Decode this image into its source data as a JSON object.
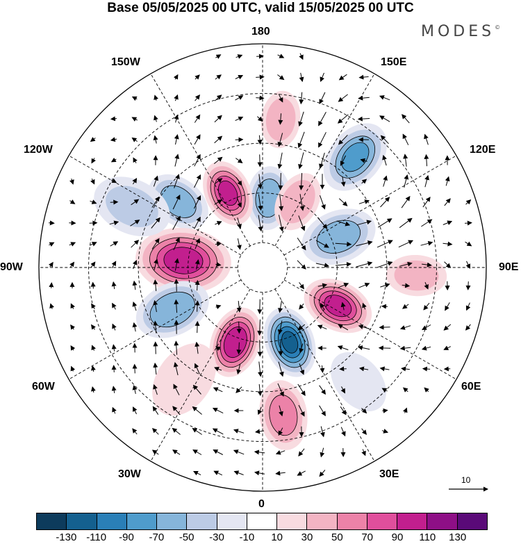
{
  "title": "Base 05/05/2025 00 UTC, valid 15/05/2025 00 UTC",
  "brand": "MODES",
  "brand_mark": "©",
  "labels": {
    "top": "180",
    "bottom": "0",
    "left": "90W",
    "right": "90E",
    "upper_left_1": "150W",
    "upper_left_2": "120W",
    "lower_left_1": "60W",
    "lower_left_2": "30W",
    "upper_right_1": "150E",
    "upper_right_2": "120E",
    "lower_right_1": "60E",
    "lower_right_2": "30E"
  },
  "reference_vector": {
    "value": "10"
  },
  "colorbar": {
    "colors": [
      "#0d3b5c",
      "#14608f",
      "#2a7fb7",
      "#4f9ccc",
      "#86b5da",
      "#bccbe5",
      "#e4e6f2",
      "#ffffff",
      "#f8dbe0",
      "#f3b4c3",
      "#ec82a8",
      "#e04f9c",
      "#c21f8e",
      "#8e0f86",
      "#5a0a78"
    ],
    "tick_labels": [
      "-130",
      "-110",
      "-90",
      "-70",
      "-50",
      "-30",
      "-10",
      "10",
      "30",
      "50",
      "70",
      "90",
      "110",
      "130"
    ]
  },
  "anomaly_centers": [
    {
      "lon": 175,
      "lat": 62,
      "value": -75,
      "size": 40
    },
    {
      "lon": -155,
      "lat": 57,
      "value": 105,
      "size": 42
    },
    {
      "lon": -128,
      "lat": 47,
      "value": -72,
      "size": 42
    },
    {
      "lon": -95,
      "lat": 58,
      "value": 110,
      "size": 60
    },
    {
      "lon": -65,
      "lat": 50,
      "value": -78,
      "size": 48
    },
    {
      "lon": -20,
      "lat": 58,
      "value": 118,
      "size": 45
    },
    {
      "lon": 20,
      "lat": 58,
      "value": -120,
      "size": 45
    },
    {
      "lon": 63,
      "lat": 56,
      "value": 108,
      "size": 45
    },
    {
      "lon": 112,
      "lat": 57,
      "value": -72,
      "size": 48
    },
    {
      "lon": 152,
      "lat": 60,
      "value": 58,
      "size": 38
    },
    {
      "lon": 140,
      "lat": 32,
      "value": -80,
      "size": 48
    },
    {
      "lon": 173,
      "lat": 30,
      "value": 55,
      "size": 36
    },
    {
      "lon": 87,
      "lat": 28,
      "value": 50,
      "size": 38
    },
    {
      "lon": 8,
      "lat": 30,
      "value": 70,
      "size": 44
    },
    {
      "lon": -115,
      "lat": 32,
      "value": -40,
      "size": 50
    },
    {
      "lon": 40,
      "lat": 30,
      "value": -30,
      "size": 42
    },
    {
      "lon": -35,
      "lat": 35,
      "value": 25,
      "size": 50
    }
  ]
}
